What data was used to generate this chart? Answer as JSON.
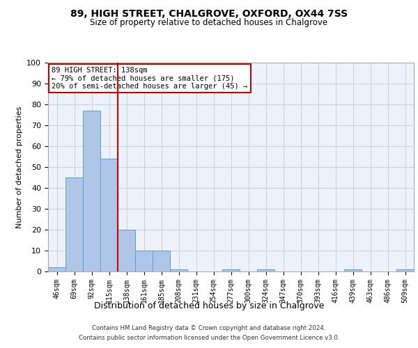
{
  "title1": "89, HIGH STREET, CHALGROVE, OXFORD, OX44 7SS",
  "title2": "Size of property relative to detached houses in Chalgrove",
  "xlabel": "Distribution of detached houses by size in Chalgrove",
  "ylabel": "Number of detached properties",
  "bar_labels": [
    "46sqm",
    "69sqm",
    "92sqm",
    "115sqm",
    "138sqm",
    "161sqm",
    "185sqm",
    "208sqm",
    "231sqm",
    "254sqm",
    "277sqm",
    "300sqm",
    "324sqm",
    "347sqm",
    "370sqm",
    "393sqm",
    "416sqm",
    "439sqm",
    "463sqm",
    "486sqm",
    "509sqm"
  ],
  "bar_values": [
    2,
    45,
    77,
    54,
    20,
    10,
    10,
    1,
    0,
    0,
    1,
    0,
    1,
    0,
    0,
    0,
    0,
    1,
    0,
    0,
    1
  ],
  "bar_color": "#aec6e8",
  "bar_edge_color": "#5a9fd4",
  "vline_index": 4,
  "vline_color": "#cc0000",
  "annotation_text": "89 HIGH STREET: 138sqm\n← 79% of detached houses are smaller (175)\n20% of semi-detached houses are larger (45) →",
  "annotation_box_color": "#cc0000",
  "ylim": [
    0,
    100
  ],
  "yticks": [
    0,
    10,
    20,
    30,
    40,
    50,
    60,
    70,
    80,
    90,
    100
  ],
  "grid_color": "#c8d0e0",
  "bg_color": "#eef2fb",
  "footer": "Contains HM Land Registry data © Crown copyright and database right 2024.\nContains public sector information licensed under the Open Government Licence v3.0."
}
